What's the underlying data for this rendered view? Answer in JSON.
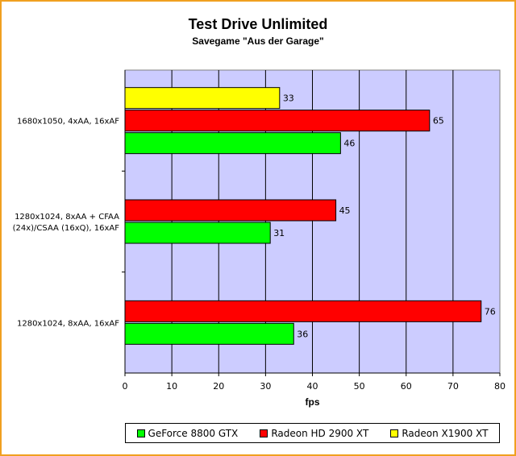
{
  "chart_data": {
    "type": "bar",
    "orientation": "horizontal",
    "title": "Test Drive Unlimited",
    "subtitle": "Savegame \"Aus der Garage\"",
    "xlabel": "fps",
    "ylabel": "",
    "xlim": [
      0,
      80
    ],
    "x_ticks": [
      "0",
      "10",
      "20",
      "30",
      "40",
      "50",
      "60",
      "70",
      "80"
    ],
    "grid": true,
    "legend_position": "bottom",
    "categories": [
      {
        "lines": [
          "1680x1050, 4xAA, 16xAF"
        ]
      },
      {
        "lines": [
          "1280x1024, 8xAA + CFAA",
          "(24x)/CSAA (16xQ), 16xAF"
        ]
      },
      {
        "lines": [
          "1280x1024, 8xAA, 16xAF"
        ]
      }
    ],
    "series": [
      {
        "name": "GeForce 8800 GTX",
        "color": "#00ff00",
        "values": [
          46,
          31,
          36
        ]
      },
      {
        "name": "Radeon HD 2900 XT",
        "color": "#ff0000",
        "values": [
          65,
          45,
          76
        ]
      },
      {
        "name": "Radeon X1900 XT",
        "color": "#ffff00",
        "values": [
          33,
          null,
          null
        ]
      }
    ],
    "plot_background": "#ccccff"
  }
}
